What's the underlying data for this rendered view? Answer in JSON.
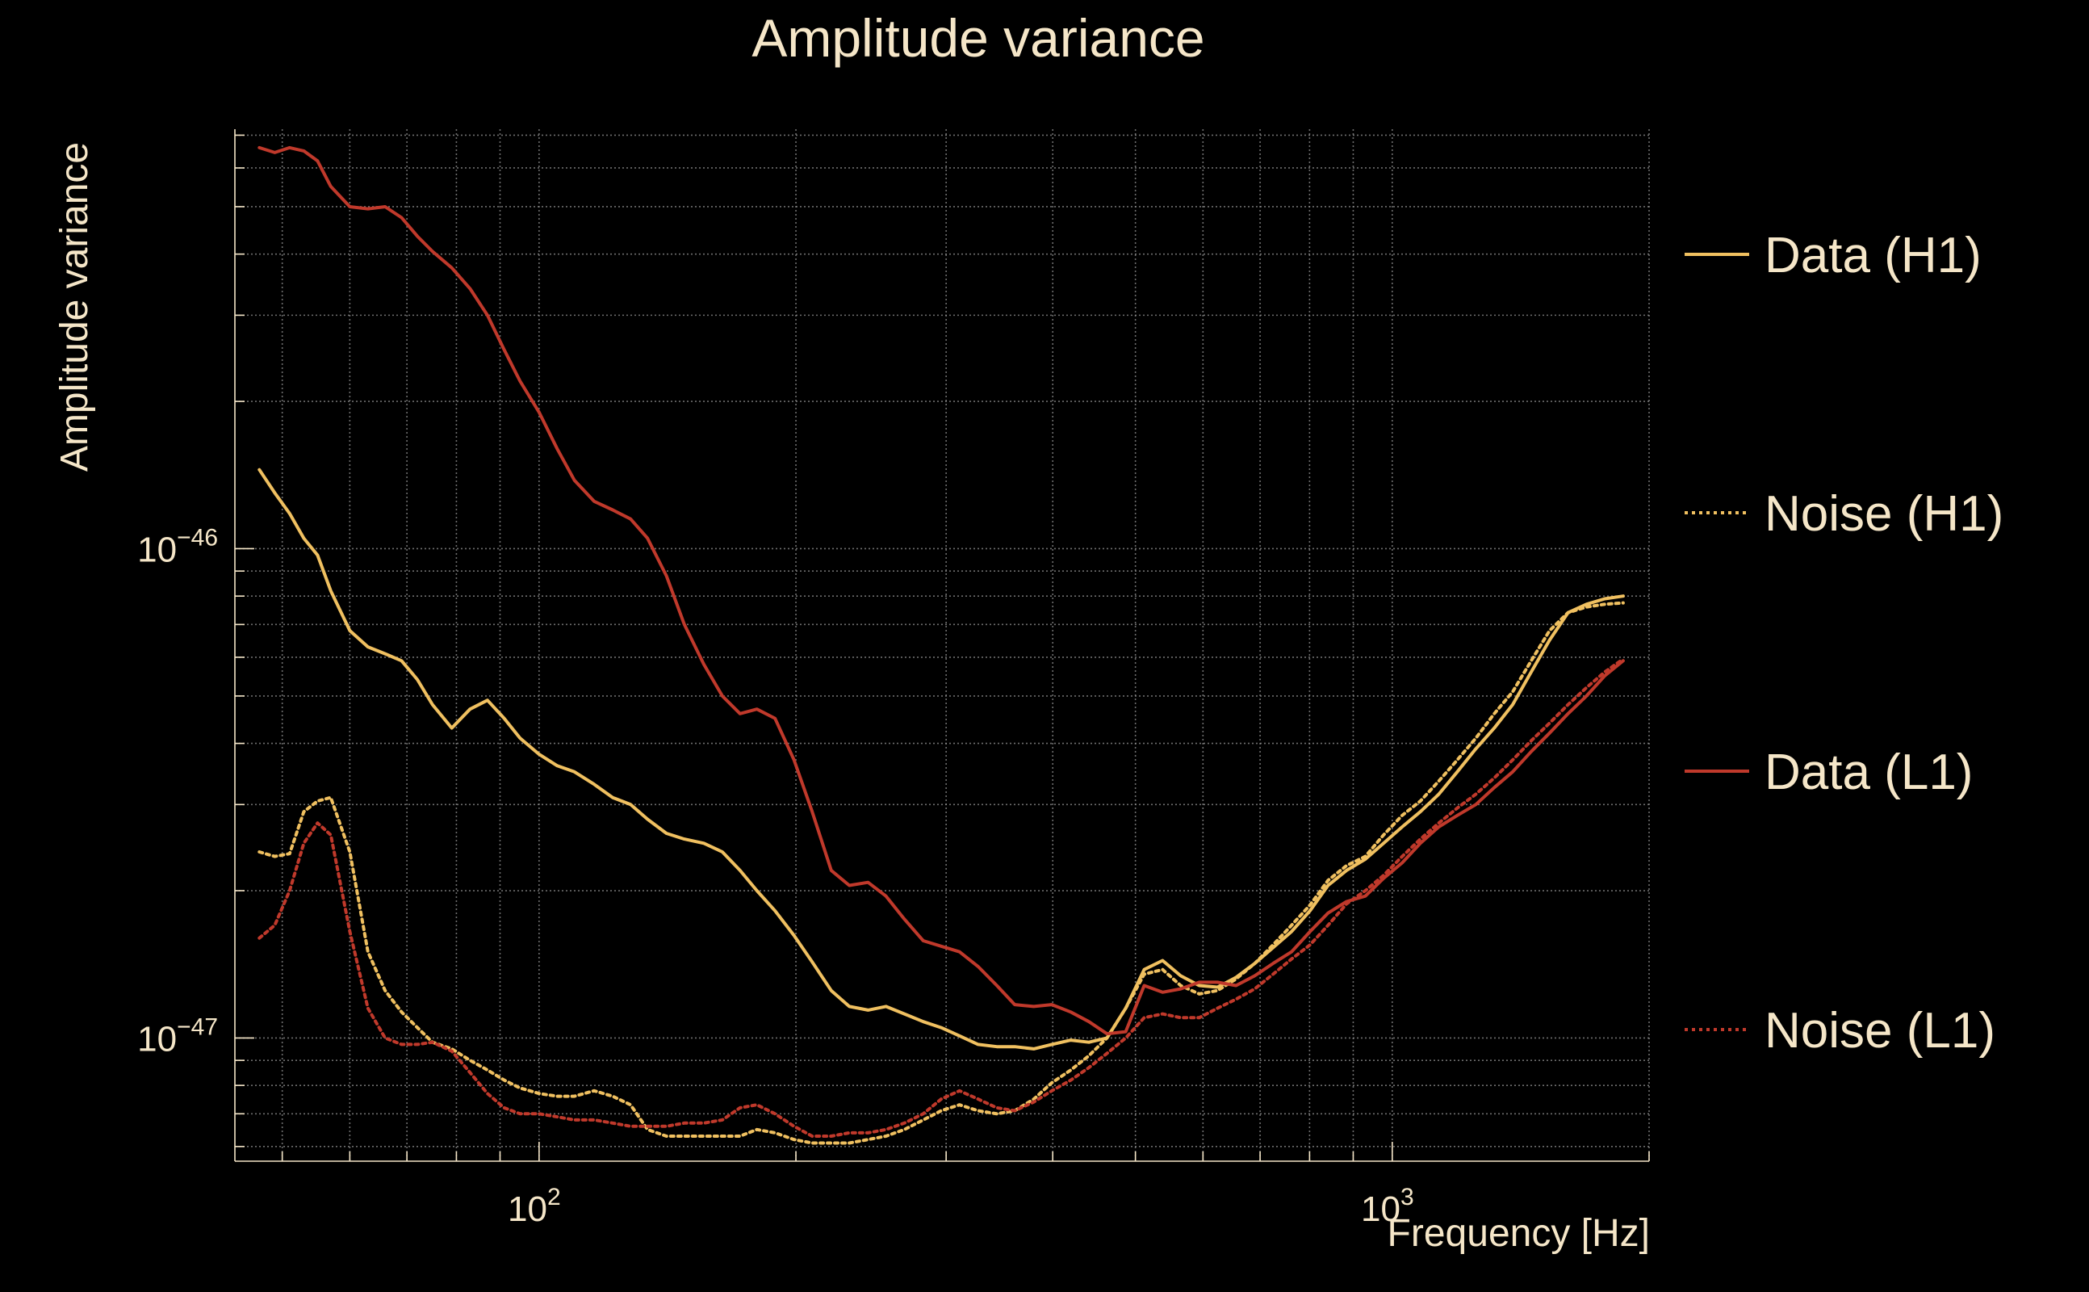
{
  "colors": {
    "background": "#000000",
    "text": "#f5e6c8",
    "grid": "#8a8a8a",
    "h1": "#f0c060",
    "l1": "#c0392b"
  },
  "chart_data": {
    "type": "line",
    "title": "Amplitude variance",
    "xlabel": "Frequency [Hz]",
    "ylabel": "Amplitude variance",
    "xscale": "log",
    "yscale": "log",
    "xlim": [
      44,
      2000
    ],
    "ylim": [
      5.6e-48,
      7.2e-46
    ],
    "grid": true,
    "legend_position": "right",
    "x_ticks": [
      {
        "value": 100,
        "base": "10",
        "exp": "2"
      },
      {
        "value": 1000,
        "base": "10",
        "exp": "3"
      }
    ],
    "y_ticks": [
      {
        "value": 1e-46,
        "base": "10",
        "exp": "−46"
      },
      {
        "value": 1e-47,
        "base": "10",
        "exp": "−47"
      }
    ],
    "x": [
      47,
      49,
      51,
      53,
      55,
      57,
      60,
      63,
      66,
      69,
      72,
      75,
      79,
      83,
      87,
      91,
      95,
      100,
      105,
      110,
      116,
      122,
      128,
      134,
      141,
      148,
      156,
      164,
      172,
      180,
      189,
      199,
      209,
      220,
      231,
      243,
      255,
      268,
      282,
      296,
      311,
      327,
      344,
      361,
      380,
      399,
      420,
      441,
      463,
      487,
      512,
      538,
      565,
      594,
      624,
      656,
      690,
      725,
      762,
      801,
      841,
      884,
      930,
      977,
      1027,
      1079,
      1134,
      1192,
      1253,
      1317,
      1384,
      1455,
      1529,
      1607,
      1689,
      1775,
      1865
    ],
    "series": [
      {
        "name": "Data (H1)",
        "color": "#f0c060",
        "dash": "solid",
        "values": [
          1.45e-46,
          1.3e-46,
          1.18e-46,
          1.05e-46,
          9.7e-47,
          8.2e-47,
          6.8e-47,
          6.3e-47,
          6.1e-47,
          5.9e-47,
          5.4e-47,
          4.8e-47,
          4.3e-47,
          4.7e-47,
          4.9e-47,
          4.5e-47,
          4.1e-47,
          3.8e-47,
          3.6e-47,
          3.5e-47,
          3.3e-47,
          3.1e-47,
          3e-47,
          2.8e-47,
          2.62e-47,
          2.55e-47,
          2.5e-47,
          2.4e-47,
          2.2e-47,
          2e-47,
          1.82e-47,
          1.62e-47,
          1.43e-47,
          1.25e-47,
          1.16e-47,
          1.14e-47,
          1.16e-47,
          1.12e-47,
          1.08e-47,
          1.05e-47,
          1.01e-47,
          9.7e-48,
          9.6e-48,
          9.6e-48,
          9.5e-48,
          9.7e-48,
          9.9e-48,
          9.8e-48,
          1e-47,
          1.15e-47,
          1.38e-47,
          1.44e-47,
          1.34e-47,
          1.28e-47,
          1.27e-47,
          1.33e-47,
          1.42e-47,
          1.53e-47,
          1.65e-47,
          1.82e-47,
          2.05e-47,
          2.2e-47,
          2.32e-47,
          2.5e-47,
          2.7e-47,
          2.9e-47,
          3.15e-47,
          3.5e-47,
          3.9e-47,
          4.3e-47,
          4.8e-47,
          5.6e-47,
          6.5e-47,
          7.4e-47,
          7.7e-47,
          7.9e-47,
          8e-47
        ]
      },
      {
        "name": "Noise (H1)",
        "color": "#f0c060",
        "dash": "dotted",
        "values": [
          2.4e-47,
          2.35e-47,
          2.38e-47,
          2.9e-47,
          3.05e-47,
          3.1e-47,
          2.4e-47,
          1.5e-47,
          1.25e-47,
          1.13e-47,
          1.05e-47,
          9.8e-48,
          9.5e-48,
          9e-48,
          8.6e-48,
          8.2e-48,
          7.9e-48,
          7.7e-48,
          7.6e-48,
          7.6e-48,
          7.8e-48,
          7.6e-48,
          7.3e-48,
          6.5e-48,
          6.3e-48,
          6.3e-48,
          6.3e-48,
          6.3e-48,
          6.3e-48,
          6.5e-48,
          6.4e-48,
          6.2e-48,
          6.1e-48,
          6.1e-48,
          6.1e-48,
          6.2e-48,
          6.3e-48,
          6.5e-48,
          6.8e-48,
          7.1e-48,
          7.3e-48,
          7.1e-48,
          7e-48,
          7.1e-48,
          7.5e-48,
          8.1e-48,
          8.6e-48,
          9.2e-48,
          1e-47,
          1.15e-47,
          1.35e-47,
          1.38e-47,
          1.28e-47,
          1.23e-47,
          1.25e-47,
          1.32e-47,
          1.42e-47,
          1.55e-47,
          1.7e-47,
          1.87e-47,
          2.1e-47,
          2.25e-47,
          2.35e-47,
          2.6e-47,
          2.85e-47,
          3.05e-47,
          3.35e-47,
          3.7e-47,
          4.1e-47,
          4.6e-47,
          5.1e-47,
          5.9e-47,
          6.8e-47,
          7.4e-47,
          7.6e-47,
          7.7e-47,
          7.75e-47
        ]
      },
      {
        "name": "Data (L1)",
        "color": "#c0392b",
        "dash": "solid",
        "values": [
          6.6e-46,
          6.45e-46,
          6.6e-46,
          6.5e-46,
          6.2e-46,
          5.5e-46,
          5e-46,
          4.95e-46,
          5e-46,
          4.75e-46,
          4.35e-46,
          4.05e-46,
          3.75e-46,
          3.4e-46,
          3e-46,
          2.55e-46,
          2.2e-46,
          1.9e-46,
          1.6e-46,
          1.38e-46,
          1.25e-46,
          1.2e-46,
          1.15e-46,
          1.05e-46,
          8.8e-47,
          7e-47,
          5.8e-47,
          5e-47,
          4.6e-47,
          4.7e-47,
          4.5e-47,
          3.7e-47,
          2.9e-47,
          2.2e-47,
          2.05e-47,
          2.08e-47,
          1.95e-47,
          1.75e-47,
          1.58e-47,
          1.54e-47,
          1.5e-47,
          1.4e-47,
          1.28e-47,
          1.17e-47,
          1.16e-47,
          1.17e-47,
          1.13e-47,
          1.08e-47,
          1.02e-47,
          1.03e-47,
          1.28e-47,
          1.24e-47,
          1.26e-47,
          1.3e-47,
          1.3e-47,
          1.28e-47,
          1.34e-47,
          1.42e-47,
          1.5e-47,
          1.65e-47,
          1.8e-47,
          1.9e-47,
          1.95e-47,
          2.12e-47,
          2.28e-47,
          2.5e-47,
          2.7e-47,
          2.85e-47,
          3e-47,
          3.25e-47,
          3.5e-47,
          3.85e-47,
          4.2e-47,
          4.6e-47,
          5e-47,
          5.5e-47,
          5.9e-47
        ]
      },
      {
        "name": "Noise (L1)",
        "color": "#c0392b",
        "dash": "dotted",
        "values": [
          1.6e-47,
          1.7e-47,
          2e-47,
          2.5e-47,
          2.75e-47,
          2.6e-47,
          1.65e-47,
          1.15e-47,
          1e-47,
          9.7e-48,
          9.7e-48,
          9.8e-48,
          9.4e-48,
          8.5e-48,
          7.7e-48,
          7.2e-48,
          7e-48,
          7e-48,
          6.9e-48,
          6.8e-48,
          6.8e-48,
          6.7e-48,
          6.6e-48,
          6.6e-48,
          6.6e-48,
          6.7e-48,
          6.7e-48,
          6.8e-48,
          7.2e-48,
          7.3e-48,
          7e-48,
          6.6e-48,
          6.3e-48,
          6.3e-48,
          6.4e-48,
          6.4e-48,
          6.5e-48,
          6.7e-48,
          7e-48,
          7.5e-48,
          7.8e-48,
          7.5e-48,
          7.2e-48,
          7.1e-48,
          7.4e-48,
          7.8e-48,
          8.2e-48,
          8.7e-48,
          9.3e-48,
          1e-47,
          1.1e-47,
          1.12e-47,
          1.1e-47,
          1.1e-47,
          1.15e-47,
          1.2e-47,
          1.26e-47,
          1.35e-47,
          1.45e-47,
          1.55e-47,
          1.7e-47,
          1.88e-47,
          2e-47,
          2.15e-47,
          2.35e-47,
          2.55e-47,
          2.75e-47,
          2.95e-47,
          3.15e-47,
          3.4e-47,
          3.7e-47,
          4.05e-47,
          4.4e-47,
          4.8e-47,
          5.2e-47,
          5.6e-47,
          5.95e-47
        ]
      }
    ]
  }
}
